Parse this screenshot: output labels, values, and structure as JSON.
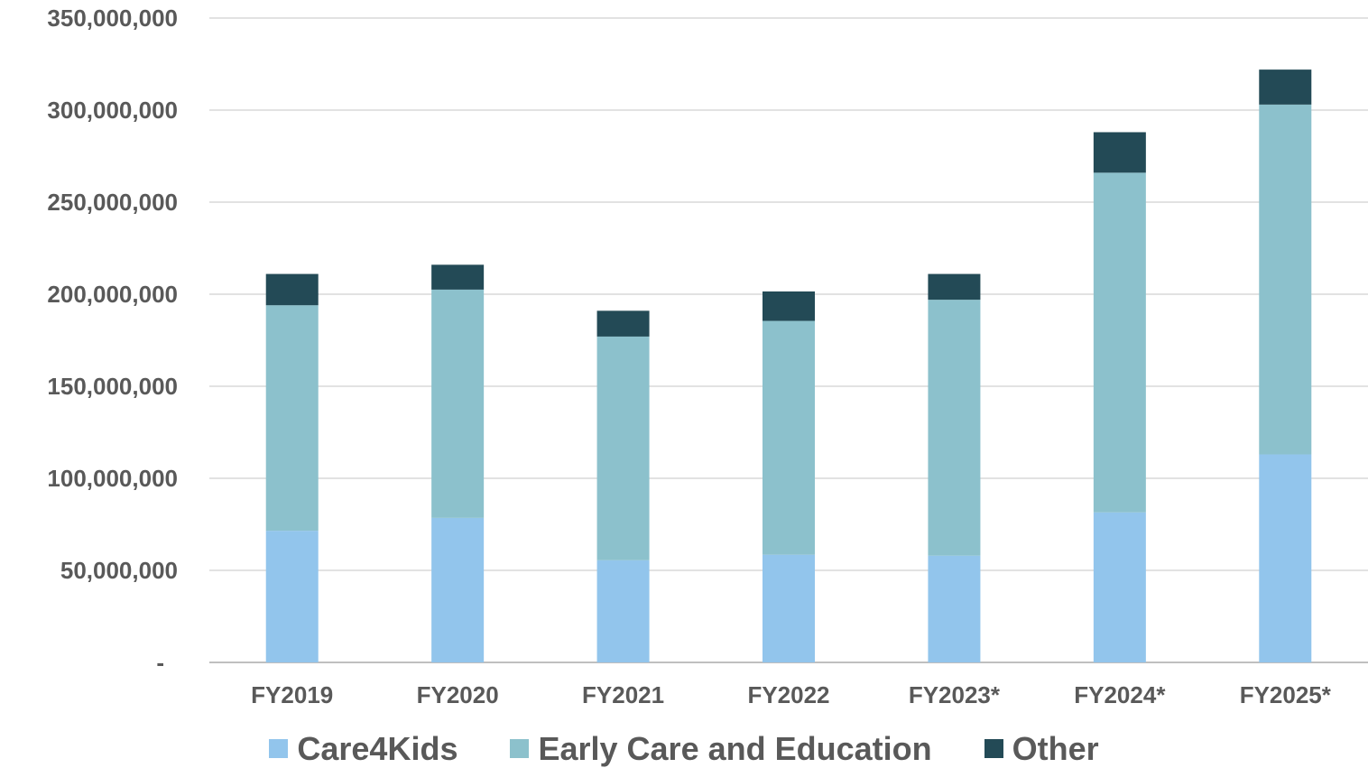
{
  "chart_data": {
    "type": "bar",
    "stacked": true,
    "title": "",
    "xlabel": "",
    "ylabel": "",
    "ylim": [
      0,
      350000000
    ],
    "yticks": [
      {
        "value": 0,
        "label": "-"
      },
      {
        "value": 50000000,
        "label": "50,000,000"
      },
      {
        "value": 100000000,
        "label": "100,000,000"
      },
      {
        "value": 150000000,
        "label": "150,000,000"
      },
      {
        "value": 200000000,
        "label": "200,000,000"
      },
      {
        "value": 250000000,
        "label": "250,000,000"
      },
      {
        "value": 300000000,
        "label": "300,000,000"
      },
      {
        "value": 350000000,
        "label": "350,000,000"
      }
    ],
    "grid": true,
    "legend_position": "bottom",
    "categories": [
      "FY2019",
      "FY2020",
      "FY2021",
      "FY2022",
      "FY2023*",
      "FY2024*",
      "FY2025*"
    ],
    "series": [
      {
        "name": "Care4Kids",
        "color": "#92c5ec",
        "values": [
          71500000,
          78500000,
          55500000,
          58500000,
          58000000,
          81500000,
          113000000
        ]
      },
      {
        "name": "Early Care and Education",
        "color": "#8cc1cc",
        "values": [
          122500000,
          124000000,
          121500000,
          127000000,
          139000000,
          184500000,
          190000000
        ]
      },
      {
        "name": "Other",
        "color": "#234a56",
        "values": [
          17000000,
          13500000,
          14000000,
          16000000,
          14000000,
          22000000,
          19000000
        ]
      }
    ]
  }
}
